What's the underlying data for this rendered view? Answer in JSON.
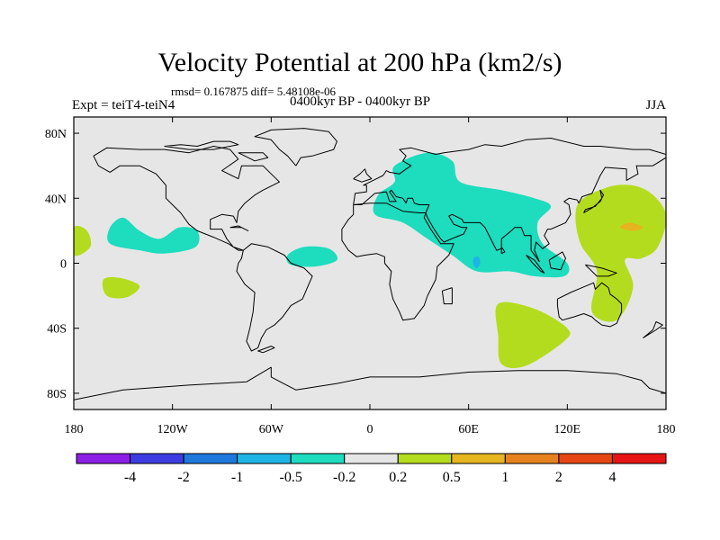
{
  "chart_data": {
    "type": "contour-map",
    "title": "Velocity Potential at 200 hPa (km2/s)",
    "stats": "rmsd= 0.167875 diff= 5.48108e-06",
    "experiment": "Expt = teiT4-teiN4",
    "period": "0400kyr BP - 0400kyr BP",
    "season": "JJA",
    "lon_range": [
      -180,
      180
    ],
    "lat_range": [
      -90,
      90
    ],
    "x_ticks": [
      {
        "lon": -180,
        "label": "180"
      },
      {
        "lon": -120,
        "label": "120W"
      },
      {
        "lon": -60,
        "label": "60W"
      },
      {
        "lon": 0,
        "label": "0"
      },
      {
        "lon": 60,
        "label": "60E"
      },
      {
        "lon": 120,
        "label": "120E"
      },
      {
        "lon": 180,
        "label": "180"
      }
    ],
    "y_ticks": [
      {
        "lat": 80,
        "label": "80N"
      },
      {
        "lat": 40,
        "label": "40N"
      },
      {
        "lat": 0,
        "label": "0"
      },
      {
        "lat": -40,
        "label": "40S"
      },
      {
        "lat": -80,
        "label": "80S"
      }
    ],
    "colorbar": {
      "colors": [
        "#8c1ee6",
        "#3c3ce1",
        "#1e78dc",
        "#1eb4e6",
        "#1edcbe",
        "#e6e6e6",
        "#b4dc1e",
        "#e6b41e",
        "#e6821e",
        "#e64614",
        "#e61414"
      ],
      "labels": [
        "-4",
        "-2",
        "-1",
        "-0.5",
        "-0.2",
        "0.2",
        "0.5",
        "1",
        "2",
        "4"
      ]
    },
    "anomaly_regions": [
      {
        "id": "eurasia-africa-asia",
        "value_class": "-0.5 to -0.2",
        "color": "#1edcbe",
        "lonlat": [
          [
            15,
            60
          ],
          [
            35,
            68
          ],
          [
            50,
            63
          ],
          [
            55,
            50
          ],
          [
            80,
            45
          ],
          [
            100,
            40
          ],
          [
            110,
            35
          ],
          [
            102,
            25
          ],
          [
            105,
            12
          ],
          [
            120,
            0
          ],
          [
            118,
            -8
          ],
          [
            100,
            -8
          ],
          [
            85,
            -5
          ],
          [
            65,
            -5
          ],
          [
            50,
            5
          ],
          [
            35,
            15
          ],
          [
            20,
            25
          ],
          [
            3,
            30
          ],
          [
            5,
            42
          ],
          [
            15,
            50
          ]
        ]
      },
      {
        "id": "arabian-sea-min",
        "value_class": "-1 to -0.5",
        "color": "#1eb4e6",
        "lonlat": [
          [
            63,
            3
          ],
          [
            66,
            4
          ],
          [
            67,
            0
          ],
          [
            65,
            -3
          ],
          [
            63,
            -1
          ]
        ]
      },
      {
        "id": "central-pacific-north",
        "value_class": "-0.5 to -0.2",
        "color": "#1edcbe",
        "lonlat": [
          [
            -158,
            22
          ],
          [
            -150,
            28
          ],
          [
            -140,
            20
          ],
          [
            -128,
            15
          ],
          [
            -116,
            22
          ],
          [
            -105,
            20
          ],
          [
            -106,
            10
          ],
          [
            -125,
            6
          ],
          [
            -140,
            8
          ],
          [
            -158,
            12
          ]
        ]
      },
      {
        "id": "tropical-atlantic",
        "value_class": "-0.5 to -0.2",
        "color": "#1edcbe",
        "lonlat": [
          [
            -50,
            5
          ],
          [
            -40,
            10
          ],
          [
            -25,
            9
          ],
          [
            -20,
            2
          ],
          [
            -33,
            -2
          ],
          [
            -48,
            -1
          ]
        ]
      },
      {
        "id": "dateline-north",
        "value_class": "0.2 to 0.5",
        "color": "#b4dc1e",
        "lonlat": [
          [
            -180,
            22
          ],
          [
            -172,
            20
          ],
          [
            -170,
            10
          ],
          [
            -180,
            5
          ]
        ]
      },
      {
        "id": "south-pacific",
        "value_class": "0.2 to 0.5",
        "color": "#b4dc1e",
        "lonlat": [
          [
            -162,
            -10
          ],
          [
            -152,
            -9
          ],
          [
            -140,
            -14
          ],
          [
            -148,
            -21
          ],
          [
            -160,
            -20
          ]
        ]
      },
      {
        "id": "west-pacific",
        "value_class": "0.2 to 0.5",
        "color": "#b4dc1e",
        "lonlat": [
          [
            130,
            40
          ],
          [
            150,
            48
          ],
          [
            168,
            45
          ],
          [
            180,
            30
          ],
          [
            175,
            10
          ],
          [
            165,
            3
          ],
          [
            155,
            2
          ],
          [
            160,
            -15
          ],
          [
            150,
            -35
          ],
          [
            135,
            -30
          ],
          [
            138,
            -5
          ],
          [
            128,
            12
          ],
          [
            125,
            30
          ]
        ]
      },
      {
        "id": "west-pacific-max",
        "value_class": "0.5 to 1",
        "color": "#e6b41e",
        "lonlat": [
          [
            152,
            22
          ],
          [
            158,
            25
          ],
          [
            166,
            22
          ],
          [
            160,
            20
          ]
        ]
      },
      {
        "id": "indian-ocean-south",
        "value_class": "0.2 to 0.5",
        "color": "#b4dc1e",
        "lonlat": [
          [
            78,
            -25
          ],
          [
            100,
            -28
          ],
          [
            120,
            -40
          ],
          [
            118,
            -48
          ],
          [
            95,
            -63
          ],
          [
            80,
            -62
          ],
          [
            78,
            -45
          ]
        ]
      }
    ]
  }
}
